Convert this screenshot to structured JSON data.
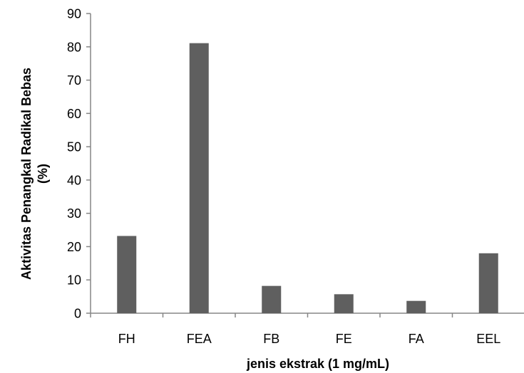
{
  "chart_data": {
    "type": "bar",
    "categories": [
      "FH",
      "FEA",
      "FB",
      "FE",
      "FA",
      "EEL"
    ],
    "values": [
      23.2,
      81.1,
      8.2,
      5.7,
      3.7,
      18.0
    ],
    "xlabel": "jenis ekstrak (1 mg/mL)",
    "ylabel_lines": [
      "Aktivitas Penangkal Radikal Bebas",
      "(%)"
    ],
    "ylim": [
      0,
      90
    ],
    "yticks": [
      0,
      10,
      20,
      30,
      40,
      50,
      60,
      70,
      80,
      90
    ],
    "grid": false,
    "legend": "none",
    "bar_color": "#5f5f5f",
    "axis_color": "#868686"
  }
}
